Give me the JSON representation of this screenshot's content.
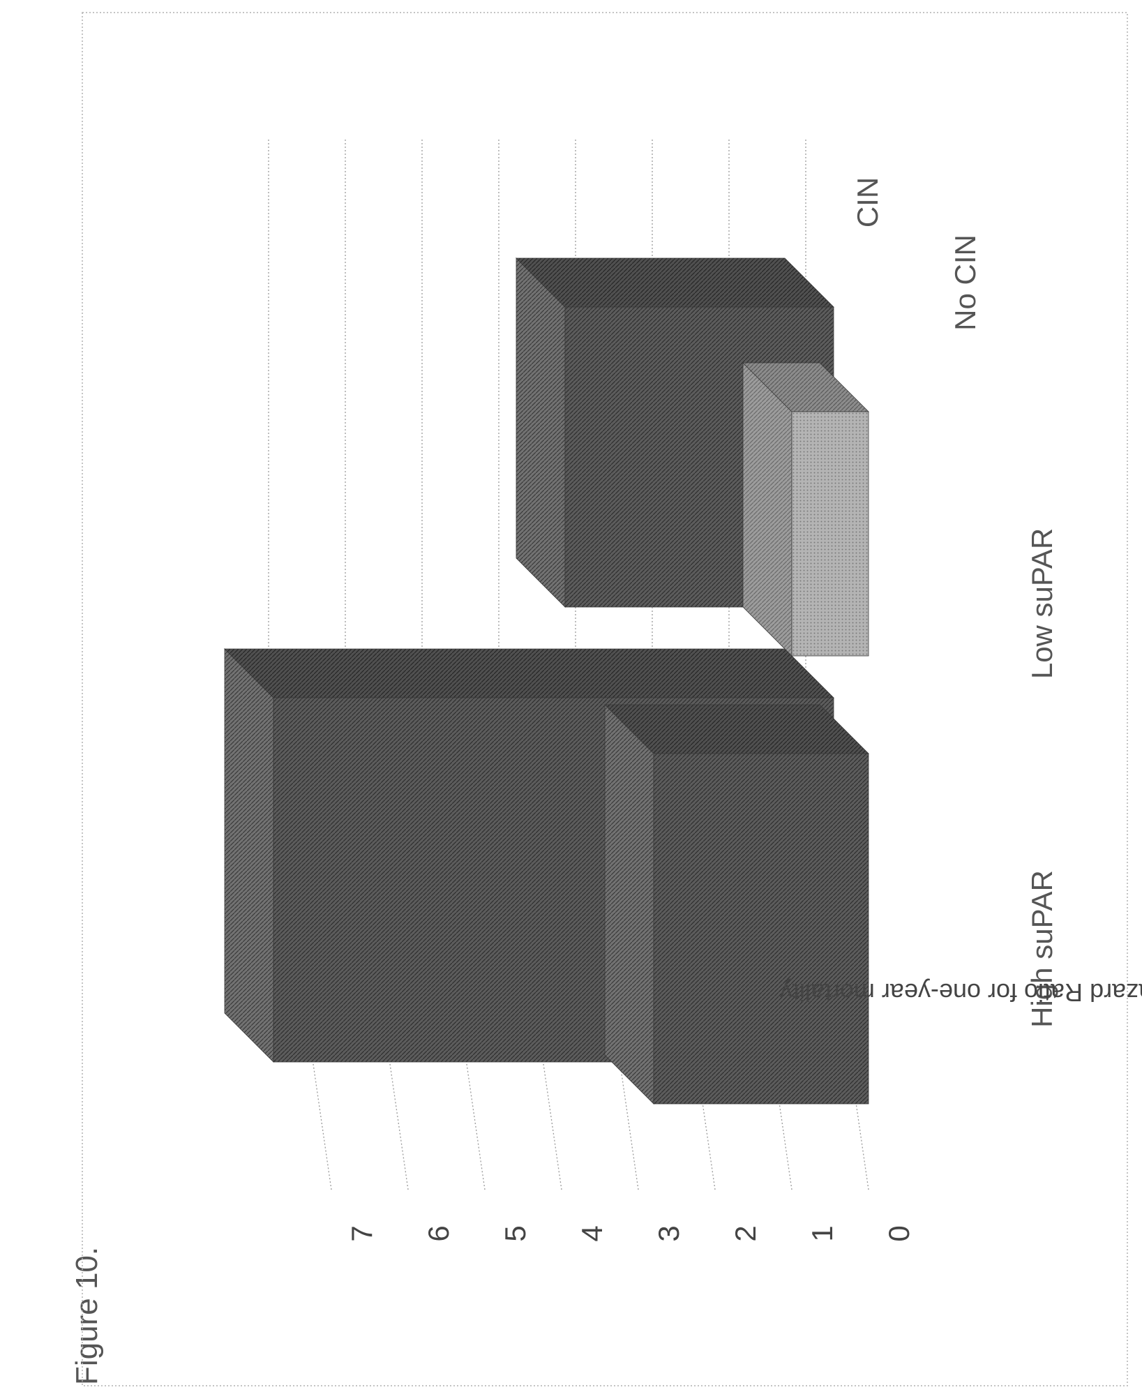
{
  "figure_label": "Figure 10.",
  "chart_data": {
    "type": "bar",
    "style": "3d-clustered",
    "orientation": "rotated-90-ccw",
    "categories": [
      "High suPAR",
      "Low suPAR"
    ],
    "series": [
      {
        "name": "CIN",
        "values": [
          7.3,
          3.5
        ],
        "pattern": "dark-hatch"
      },
      {
        "name": "No CIN",
        "values": [
          2.8,
          1.0
        ],
        "pattern": "light-hatch"
      }
    ],
    "ylabel": "Hazard Ratio for one-year mortality",
    "ylim": [
      0,
      7
    ],
    "yticks": [
      "0",
      "1",
      "2",
      "3",
      "4",
      "5",
      "6",
      "7"
    ],
    "legend_position": "right-of-categories",
    "grid": true,
    "colors": {
      "cin_front": "#5a5a5a",
      "cin_top": "#6a6a6a",
      "cin_side": "#4a4a4a",
      "nocin_front": "#a8a8a8",
      "nocin_top": "#9a9a9a",
      "nocin_side": "#8a8a8a",
      "grid": "#9a9a9a"
    }
  }
}
